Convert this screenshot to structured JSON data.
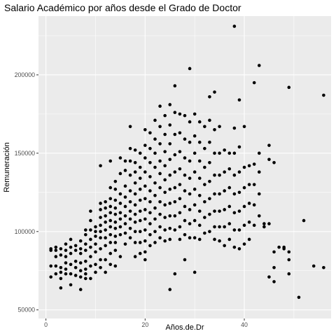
{
  "chart_data": {
    "type": "scatter",
    "title": "Salario Académico por años desde el Grado de Doctor",
    "xlabel": "Años.de.Dr",
    "ylabel": "Remuneración",
    "xlim": [
      -1.5,
      57.5
    ],
    "ylim": [
      44500,
      237500
    ],
    "x_ticks": [
      0,
      20,
      40
    ],
    "x_tick_labels": [
      "0",
      "20",
      "40"
    ],
    "y_ticks": [
      50000,
      100000,
      150000,
      200000
    ],
    "y_tick_labels": [
      "50000",
      "100000",
      "150000",
      "200000"
    ],
    "grid": true,
    "legend": "none",
    "point_color": "#000000",
    "panel_color": "#ebebeb",
    "points": [
      [
        1,
        89000
      ],
      [
        1,
        88000
      ],
      [
        1,
        78000
      ],
      [
        1,
        71000
      ],
      [
        2,
        90000
      ],
      [
        2,
        88000
      ],
      [
        2,
        78000
      ],
      [
        2,
        73000
      ],
      [
        2,
        84000
      ],
      [
        3,
        89000
      ],
      [
        3,
        85000
      ],
      [
        3,
        77000
      ],
      [
        3,
        74000
      ],
      [
        3,
        64000
      ],
      [
        3,
        70000
      ],
      [
        4,
        92000
      ],
      [
        4,
        88000
      ],
      [
        4,
        80000
      ],
      [
        4,
        76000
      ],
      [
        4,
        73000
      ],
      [
        4,
        84000
      ],
      [
        5,
        95000
      ],
      [
        5,
        90000
      ],
      [
        5,
        86000
      ],
      [
        5,
        79000
      ],
      [
        5,
        73000
      ],
      [
        5,
        66000
      ],
      [
        6,
        91000
      ],
      [
        6,
        88000
      ],
      [
        6,
        81000
      ],
      [
        6,
        77000
      ],
      [
        6,
        72000
      ],
      [
        7,
        94000
      ],
      [
        7,
        89000
      ],
      [
        7,
        86000
      ],
      [
        7,
        80000
      ],
      [
        7,
        75000
      ],
      [
        7,
        63000
      ],
      [
        7,
        71000
      ],
      [
        8,
        101000
      ],
      [
        8,
        98000
      ],
      [
        8,
        92000
      ],
      [
        8,
        88000
      ],
      [
        8,
        81000
      ],
      [
        8,
        76000
      ],
      [
        8,
        73000
      ],
      [
        8,
        70000
      ],
      [
        9,
        113000
      ],
      [
        9,
        107000
      ],
      [
        9,
        101000
      ],
      [
        9,
        95000
      ],
      [
        9,
        90000
      ],
      [
        9,
        84000
      ],
      [
        9,
        78000
      ],
      [
        9,
        70000
      ],
      [
        10,
        103000
      ],
      [
        10,
        100000
      ],
      [
        10,
        97000
      ],
      [
        10,
        92000
      ],
      [
        10,
        87000
      ],
      [
        10,
        79000
      ],
      [
        10,
        74000
      ],
      [
        11,
        142000
      ],
      [
        11,
        118000
      ],
      [
        11,
        114000
      ],
      [
        11,
        109000
      ],
      [
        11,
        104000
      ],
      [
        11,
        100000
      ],
      [
        11,
        96000
      ],
      [
        11,
        89000
      ],
      [
        11,
        82000
      ],
      [
        11,
        77000
      ],
      [
        12,
        119000
      ],
      [
        12,
        115000
      ],
      [
        12,
        110000
      ],
      [
        12,
        106000
      ],
      [
        12,
        101000
      ],
      [
        12,
        96000
      ],
      [
        12,
        91000
      ],
      [
        12,
        82000
      ],
      [
        12,
        74000
      ],
      [
        13,
        145000
      ],
      [
        13,
        128000
      ],
      [
        13,
        121000
      ],
      [
        13,
        116000
      ],
      [
        13,
        112000
      ],
      [
        13,
        107000
      ],
      [
        13,
        103000
      ],
      [
        13,
        98000
      ],
      [
        13,
        93000
      ],
      [
        13,
        86000
      ],
      [
        13,
        79000
      ],
      [
        14,
        132000
      ],
      [
        14,
        127000
      ],
      [
        14,
        120000
      ],
      [
        14,
        115000
      ],
      [
        14,
        111000
      ],
      [
        14,
        106000
      ],
      [
        14,
        102000
      ],
      [
        14,
        97000
      ],
      [
        14,
        93000
      ],
      [
        14,
        88000
      ],
      [
        14,
        78000
      ],
      [
        15,
        147000
      ],
      [
        15,
        137000
      ],
      [
        15,
        124000
      ],
      [
        15,
        118000
      ],
      [
        15,
        112000
      ],
      [
        15,
        108000
      ],
      [
        15,
        103000
      ],
      [
        15,
        98000
      ],
      [
        15,
        84000
      ],
      [
        16,
        145000
      ],
      [
        16,
        139000
      ],
      [
        16,
        129000
      ],
      [
        16,
        122000
      ],
      [
        16,
        116000
      ],
      [
        16,
        110000
      ],
      [
        16,
        105000
      ],
      [
        16,
        99000
      ],
      [
        16,
        92000
      ],
      [
        17,
        167000
      ],
      [
        17,
        153000
      ],
      [
        17,
        145000
      ],
      [
        17,
        136000
      ],
      [
        17,
        126000
      ],
      [
        17,
        119000
      ],
      [
        17,
        113000
      ],
      [
        17,
        108000
      ],
      [
        17,
        102000
      ],
      [
        17,
        96000
      ],
      [
        18,
        152000
      ],
      [
        18,
        144000
      ],
      [
        18,
        138000
      ],
      [
        18,
        131000
      ],
      [
        18,
        124000
      ],
      [
        18,
        117000
      ],
      [
        18,
        111000
      ],
      [
        18,
        106000
      ],
      [
        18,
        100000
      ],
      [
        18,
        93000
      ],
      [
        18,
        84000
      ],
      [
        19,
        150000
      ],
      [
        19,
        141000
      ],
      [
        19,
        134000
      ],
      [
        19,
        127000
      ],
      [
        19,
        120000
      ],
      [
        19,
        113000
      ],
      [
        19,
        107000
      ],
      [
        19,
        100000
      ],
      [
        19,
        93000
      ],
      [
        19,
        86000
      ],
      [
        20,
        165000
      ],
      [
        20,
        155000
      ],
      [
        20,
        147000
      ],
      [
        20,
        138000
      ],
      [
        20,
        129000
      ],
      [
        20,
        121000
      ],
      [
        20,
        114000
      ],
      [
        20,
        108000
      ],
      [
        20,
        101000
      ],
      [
        20,
        94000
      ],
      [
        20,
        87000
      ],
      [
        20,
        82000
      ],
      [
        21,
        163000
      ],
      [
        21,
        153000
      ],
      [
        21,
        144000
      ],
      [
        21,
        135000
      ],
      [
        21,
        126000
      ],
      [
        21,
        119000
      ],
      [
        21,
        112000
      ],
      [
        21,
        105000
      ],
      [
        21,
        98000
      ],
      [
        21,
        91000
      ],
      [
        22,
        171000
      ],
      [
        22,
        159000
      ],
      [
        22,
        150000
      ],
      [
        22,
        141000
      ],
      [
        22,
        131000
      ],
      [
        22,
        123000
      ],
      [
        22,
        115000
      ],
      [
        22,
        108000
      ],
      [
        22,
        100000
      ],
      [
        22,
        93000
      ],
      [
        23,
        180000
      ],
      [
        23,
        167000
      ],
      [
        23,
        156000
      ],
      [
        23,
        145000
      ],
      [
        23,
        137000
      ],
      [
        23,
        128000
      ],
      [
        23,
        119000
      ],
      [
        23,
        111000
      ],
      [
        23,
        103000
      ],
      [
        23,
        96000
      ],
      [
        24,
        174000
      ],
      [
        24,
        162000
      ],
      [
        24,
        151000
      ],
      [
        24,
        142000
      ],
      [
        24,
        133000
      ],
      [
        24,
        125000
      ],
      [
        24,
        117000
      ],
      [
        24,
        109000
      ],
      [
        24,
        101000
      ],
      [
        24,
        94000
      ],
      [
        25,
        181000
      ],
      [
        25,
        168000
      ],
      [
        25,
        156000
      ],
      [
        25,
        146000
      ],
      [
        25,
        136000
      ],
      [
        25,
        127000
      ],
      [
        25,
        118000
      ],
      [
        25,
        110000
      ],
      [
        25,
        102000
      ],
      [
        25,
        95000
      ],
      [
        25,
        63000
      ],
      [
        26,
        193000
      ],
      [
        26,
        176000
      ],
      [
        26,
        162000
      ],
      [
        26,
        149000
      ],
      [
        26,
        138000
      ],
      [
        26,
        128000
      ],
      [
        26,
        119000
      ],
      [
        26,
        110000
      ],
      [
        26,
        101000
      ],
      [
        26,
        73000
      ],
      [
        27,
        175000
      ],
      [
        27,
        163000
      ],
      [
        27,
        151000
      ],
      [
        27,
        140000
      ],
      [
        27,
        130000
      ],
      [
        27,
        121000
      ],
      [
        27,
        112000
      ],
      [
        27,
        103000
      ],
      [
        27,
        95000
      ],
      [
        28,
        174000
      ],
      [
        28,
        159000
      ],
      [
        28,
        147000
      ],
      [
        28,
        136000
      ],
      [
        28,
        126000
      ],
      [
        28,
        116000
      ],
      [
        28,
        107000
      ],
      [
        28,
        98000
      ],
      [
        28,
        82000
      ],
      [
        29,
        204000
      ],
      [
        29,
        170000
      ],
      [
        29,
        157000
      ],
      [
        29,
        145000
      ],
      [
        29,
        134000
      ],
      [
        29,
        124000
      ],
      [
        29,
        114000
      ],
      [
        29,
        105000
      ],
      [
        29,
        96000
      ],
      [
        30,
        175000
      ],
      [
        30,
        161000
      ],
      [
        30,
        150000
      ],
      [
        30,
        138000
      ],
      [
        30,
        127000
      ],
      [
        30,
        117000
      ],
      [
        30,
        107000
      ],
      [
        30,
        96000
      ],
      [
        30,
        74000
      ],
      [
        31,
        170000
      ],
      [
        31,
        157000
      ],
      [
        31,
        145000
      ],
      [
        31,
        134000
      ],
      [
        31,
        123000
      ],
      [
        31,
        113000
      ],
      [
        31,
        104000
      ],
      [
        31,
        95000
      ],
      [
        32,
        167000
      ],
      [
        32,
        153000
      ],
      [
        32,
        141000
      ],
      [
        32,
        130000
      ],
      [
        32,
        119000
      ],
      [
        32,
        109000
      ],
      [
        32,
        99000
      ],
      [
        33,
        186000
      ],
      [
        33,
        171000
      ],
      [
        33,
        157000
      ],
      [
        33,
        144000
      ],
      [
        33,
        132000
      ],
      [
        33,
        121000
      ],
      [
        33,
        111000
      ],
      [
        33,
        100000
      ],
      [
        34,
        189000
      ],
      [
        34,
        165000
      ],
      [
        34,
        150000
      ],
      [
        34,
        136000
      ],
      [
        34,
        124000
      ],
      [
        34,
        113000
      ],
      [
        34,
        103000
      ],
      [
        34,
        95000
      ],
      [
        35,
        167000
      ],
      [
        35,
        150000
      ],
      [
        35,
        136000
      ],
      [
        35,
        124000
      ],
      [
        35,
        113000
      ],
      [
        35,
        103000
      ],
      [
        35,
        94000
      ],
      [
        36,
        152000
      ],
      [
        36,
        138000
      ],
      [
        36,
        126000
      ],
      [
        36,
        114000
      ],
      [
        36,
        103000
      ],
      [
        36,
        91000
      ],
      [
        37,
        150000
      ],
      [
        37,
        140000
      ],
      [
        37,
        128000
      ],
      [
        37,
        116000
      ],
      [
        37,
        105000
      ],
      [
        37,
        95000
      ],
      [
        38,
        231000
      ],
      [
        38,
        166000
      ],
      [
        38,
        150000
      ],
      [
        38,
        136000
      ],
      [
        38,
        124000
      ],
      [
        38,
        112000
      ],
      [
        38,
        101000
      ],
      [
        38,
        90000
      ],
      [
        39,
        184000
      ],
      [
        39,
        154000
      ],
      [
        39,
        138000
      ],
      [
        39,
        125000
      ],
      [
        39,
        113000
      ],
      [
        39,
        101000
      ],
      [
        39,
        89000
      ],
      [
        40,
        167000
      ],
      [
        40,
        141000
      ],
      [
        40,
        128000
      ],
      [
        40,
        116000
      ],
      [
        40,
        104000
      ],
      [
        40,
        92000
      ],
      [
        41,
        142000
      ],
      [
        41,
        130000
      ],
      [
        41,
        118000
      ],
      [
        41,
        106000
      ],
      [
        41,
        95000
      ],
      [
        42,
        195000
      ],
      [
        42,
        143000
      ],
      [
        42,
        130000
      ],
      [
        42,
        117000
      ],
      [
        42,
        104000
      ],
      [
        43,
        206000
      ],
      [
        43,
        150000
      ],
      [
        43,
        138000
      ],
      [
        43,
        124000
      ],
      [
        43,
        110000
      ],
      [
        44,
        105000
      ],
      [
        44,
        103000
      ],
      [
        45,
        155000
      ],
      [
        45,
        146000
      ],
      [
        45,
        105000
      ],
      [
        45,
        71000
      ],
      [
        46,
        144000
      ],
      [
        46,
        87000
      ],
      [
        46,
        77000
      ],
      [
        46,
        68000
      ],
      [
        47,
        90000
      ],
      [
        48,
        90000
      ],
      [
        48,
        89000
      ],
      [
        49,
        192000
      ],
      [
        49,
        87000
      ],
      [
        49,
        82000
      ],
      [
        49,
        73000
      ],
      [
        51,
        58000
      ],
      [
        52,
        107000
      ],
      [
        54,
        78000
      ],
      [
        56,
        187000
      ],
      [
        56,
        77000
      ]
    ]
  }
}
